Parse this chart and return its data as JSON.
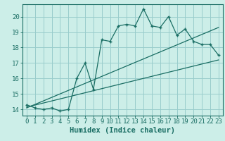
{
  "xlabel": "Humidex (Indice chaleur)",
  "bg_color": "#cceee8",
  "grid_color": "#99cccc",
  "line_color": "#1a6e64",
  "xlim": [
    -0.5,
    23.5
  ],
  "ylim": [
    13.6,
    20.8
  ],
  "xticks": [
    0,
    1,
    2,
    3,
    4,
    5,
    6,
    7,
    8,
    9,
    10,
    11,
    12,
    13,
    14,
    15,
    16,
    17,
    18,
    19,
    20,
    21,
    22,
    23
  ],
  "yticks": [
    14,
    15,
    16,
    17,
    18,
    19,
    20
  ],
  "main_x": [
    0,
    1,
    2,
    3,
    4,
    5,
    6,
    7,
    8,
    9,
    10,
    11,
    12,
    13,
    14,
    15,
    16,
    17,
    18,
    19,
    20,
    21,
    22,
    23
  ],
  "main_y": [
    14.3,
    14.1,
    14.0,
    14.1,
    13.9,
    14.0,
    16.0,
    17.0,
    15.3,
    18.5,
    18.4,
    19.4,
    19.5,
    19.4,
    20.5,
    19.4,
    19.3,
    20.0,
    18.8,
    19.2,
    18.4,
    18.2,
    18.2,
    17.5
  ],
  "trend1_x": [
    0,
    23
  ],
  "trend1_y": [
    14.15,
    17.2
  ],
  "trend2_x": [
    0,
    23
  ],
  "trend2_y": [
    14.1,
    19.3
  ],
  "font_family": "monospace",
  "tick_fontsize": 6.5,
  "label_fontsize": 7.5,
  "figsize": [
    3.2,
    2.0
  ],
  "dpi": 100
}
